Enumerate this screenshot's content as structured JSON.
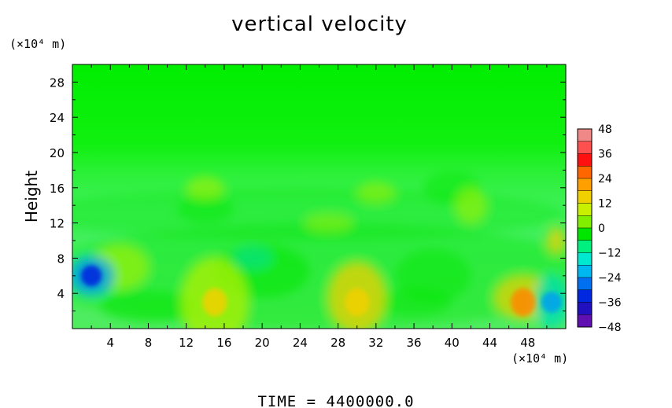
{
  "chart_data": {
    "type": "heatmap",
    "title": "vertical velocity",
    "ylabel": "Height",
    "xlabel": "",
    "x_unit": "(×10⁴ m)",
    "y_unit": "(×10⁴ m)",
    "xlim": [
      0,
      52
    ],
    "ylim": [
      0,
      30
    ],
    "x_ticks": [
      "4",
      "8",
      "12",
      "16",
      "20",
      "24",
      "28",
      "32",
      "36",
      "40",
      "44",
      "48"
    ],
    "y_ticks": [
      "4",
      "8",
      "12",
      "16",
      "20",
      "24",
      "28"
    ],
    "colorbar": {
      "min": -48,
      "max": 48,
      "labels": [
        "48",
        "36",
        "24",
        "12",
        "0",
        "−12",
        "−24",
        "−36",
        "−48"
      ]
    },
    "features": [
      {
        "x": 2,
        "y": 6,
        "value": -34
      },
      {
        "x": 15,
        "y": 3,
        "value": 14
      },
      {
        "x": 30,
        "y": 3,
        "value": 20
      },
      {
        "x": 47.5,
        "y": 3,
        "value": 26
      },
      {
        "x": 50.5,
        "y": 3,
        "value": -28
      }
    ],
    "footer": "TIME = 4400000.0"
  }
}
